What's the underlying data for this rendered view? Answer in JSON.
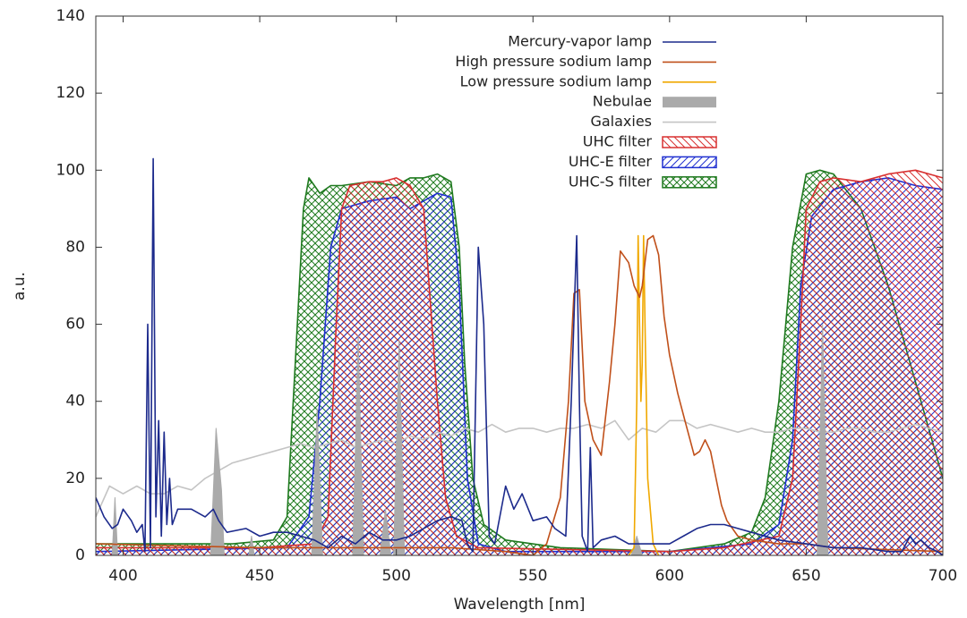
{
  "chart_data": {
    "type": "line",
    "xlabel": "Wavelength [nm]",
    "ylabel": "a.u.",
    "xlim": [
      390,
      700
    ],
    "ylim": [
      0,
      140
    ],
    "xticks": [
      400,
      450,
      500,
      550,
      600,
      650,
      700
    ],
    "yticks": [
      0,
      20,
      40,
      60,
      80,
      100,
      120,
      140
    ],
    "grid": false,
    "legend": "top-center",
    "series": [
      {
        "name": "Mercury-vapor lamp",
        "color": "#1c2a8c",
        "kind": "line",
        "x": [
          390,
          393,
          396,
          398,
          400,
          403,
          405,
          407,
          408,
          409,
          410,
          411,
          412,
          413,
          414,
          415,
          416,
          417,
          418,
          420,
          425,
          430,
          433,
          435,
          438,
          445,
          450,
          455,
          460,
          465,
          470,
          475,
          480,
          485,
          490,
          495,
          500,
          505,
          510,
          515,
          520,
          524,
          526,
          528,
          530,
          532,
          534,
          536,
          540,
          543,
          546,
          550,
          555,
          558,
          562,
          564,
          566,
          567,
          568,
          570,
          571,
          572,
          575,
          580,
          585,
          590,
          600,
          605,
          610,
          615,
          620,
          625,
          630,
          640,
          650,
          660,
          670,
          680,
          685,
          688,
          690,
          692,
          695,
          698,
          700
        ],
        "values": [
          15,
          10,
          7,
          8,
          12,
          9,
          6,
          8,
          1,
          60,
          2,
          103,
          10,
          35,
          5,
          32,
          8,
          20,
          8,
          12,
          12,
          10,
          12,
          9,
          6,
          7,
          5,
          6,
          6,
          5,
          4,
          2,
          5,
          3,
          6,
          4,
          4,
          5,
          7,
          9,
          10,
          9,
          3,
          1,
          80,
          60,
          5,
          3,
          18,
          12,
          16,
          9,
          10,
          7,
          5,
          40,
          83,
          40,
          5,
          1,
          28,
          2,
          4,
          5,
          3,
          3,
          3,
          5,
          7,
          8,
          8,
          7,
          6,
          4,
          3,
          2,
          2,
          1,
          1,
          5,
          3,
          4,
          2,
          1,
          0
        ]
      },
      {
        "name": "High pressure sodium lamp",
        "color": "#c0501a",
        "kind": "line",
        "x": [
          390,
          450,
          500,
          520,
          540,
          550,
          555,
          560,
          563,
          565,
          567,
          569,
          572,
          575,
          578,
          580,
          582,
          585,
          587,
          589,
          590,
          592,
          594,
          596,
          598,
          600,
          603,
          606,
          609,
          611,
          613,
          615,
          617,
          619,
          621,
          625,
          630,
          640,
          650,
          660,
          700
        ],
        "values": [
          3,
          2,
          2,
          2,
          1,
          0,
          3,
          15,
          40,
          68,
          69,
          40,
          30,
          26,
          45,
          60,
          79,
          76,
          70,
          67,
          70,
          82,
          83,
          78,
          62,
          52,
          42,
          34,
          26,
          27,
          30,
          27,
          20,
          13,
          9,
          5,
          4,
          3,
          3,
          2,
          1
        ]
      },
      {
        "name": "Low pressure sodium lamp",
        "color": "#f0a800",
        "kind": "line",
        "x": [
          585,
          587,
          588,
          588.5,
          589,
          589.5,
          590,
          590.5,
          591,
          592,
          594,
          596
        ],
        "values": [
          0,
          2,
          40,
          83,
          60,
          40,
          50,
          83,
          60,
          20,
          3,
          0
        ]
      },
      {
        "name": "Nebulae",
        "color": "#aaaaaa",
        "kind": "area",
        "x": [
          390,
          396,
          397,
          398,
          432,
          434,
          436,
          437,
          446,
          447,
          448,
          469,
          471,
          473,
          484,
          486,
          488,
          494,
          496,
          498,
          499,
          501,
          503,
          586,
          588,
          590,
          654,
          656,
          658,
          700
        ],
        "values": [
          0,
          0,
          15,
          0,
          0,
          33,
          17,
          0,
          0,
          5,
          0,
          0,
          38,
          0,
          0,
          57,
          0,
          0,
          12,
          0,
          0,
          56,
          0,
          0,
          5,
          0,
          0,
          60,
          0,
          0
        ]
      },
      {
        "name": "Galaxies",
        "color": "#c4c4c4",
        "kind": "line",
        "x": [
          390,
          395,
          400,
          405,
          410,
          415,
          420,
          425,
          430,
          435,
          440,
          445,
          450,
          455,
          460,
          465,
          470,
          475,
          480,
          485,
          490,
          495,
          500,
          505,
          510,
          515,
          520,
          525,
          530,
          535,
          540,
          545,
          550,
          555,
          560,
          565,
          570,
          575,
          580,
          585,
          590,
          595,
          600,
          605,
          610,
          615,
          620,
          625,
          630,
          635,
          640,
          645,
          650,
          655,
          660,
          665,
          670,
          675,
          680,
          685,
          690,
          695,
          700
        ],
        "values": [
          10,
          18,
          16,
          18,
          16,
          16,
          18,
          17,
          20,
          22,
          24,
          25,
          26,
          27,
          28,
          29,
          28,
          29,
          30,
          28,
          29,
          30,
          29,
          31,
          30,
          32,
          31,
          33,
          32,
          34,
          32,
          33,
          33,
          32,
          33,
          33,
          34,
          33,
          35,
          30,
          33,
          32,
          35,
          35,
          33,
          34,
          33,
          32,
          33,
          32,
          32,
          33,
          33,
          32,
          32,
          33,
          33,
          32,
          32,
          33,
          34,
          33,
          32
        ]
      },
      {
        "name": "UHC filter",
        "color": "#d83030",
        "kind": "hatch",
        "hatch": "down",
        "x": [
          390,
          450,
          470,
          475,
          478,
          480,
          483,
          490,
          495,
          500,
          505,
          510,
          512,
          515,
          518,
          522,
          530,
          600,
          620,
          640,
          645,
          648,
          650,
          655,
          660,
          670,
          680,
          690,
          700
        ],
        "values": [
          2,
          2,
          3,
          10,
          60,
          90,
          96,
          97,
          97,
          98,
          96,
          90,
          70,
          40,
          15,
          5,
          2,
          1,
          2,
          5,
          20,
          60,
          90,
          97,
          98,
          97,
          99,
          100,
          98
        ]
      },
      {
        "name": "UHC-E filter",
        "color": "#1f2fd0",
        "kind": "hatch",
        "hatch": "up",
        "x": [
          390,
          460,
          468,
          472,
          476,
          480,
          490,
          500,
          505,
          510,
          515,
          520,
          523,
          526,
          530,
          540,
          600,
          630,
          640,
          645,
          648,
          652,
          660,
          670,
          680,
          690,
          700
        ],
        "values": [
          1,
          2,
          10,
          40,
          80,
          90,
          92,
          93,
          90,
          92,
          94,
          93,
          70,
          20,
          3,
          1,
          1,
          3,
          8,
          30,
          70,
          88,
          95,
          97,
          98,
          96,
          95
        ]
      },
      {
        "name": "UHC-S filter",
        "color": "#1f7a1f",
        "kind": "hatch",
        "hatch": "cross",
        "x": [
          390,
          440,
          455,
          460,
          463,
          466,
          468,
          472,
          476,
          480,
          490,
          500,
          505,
          510,
          515,
          520,
          523,
          525,
          528,
          532,
          540,
          560,
          600,
          620,
          630,
          635,
          640,
          645,
          650,
          655,
          660,
          670,
          680,
          690,
          700
        ],
        "values": [
          3,
          3,
          4,
          10,
          50,
          90,
          98,
          94,
          96,
          96,
          97,
          96,
          98,
          98,
          99,
          97,
          80,
          50,
          20,
          8,
          4,
          2,
          1,
          3,
          6,
          15,
          40,
          80,
          99,
          100,
          99,
          90,
          70,
          45,
          20
        ]
      }
    ]
  }
}
